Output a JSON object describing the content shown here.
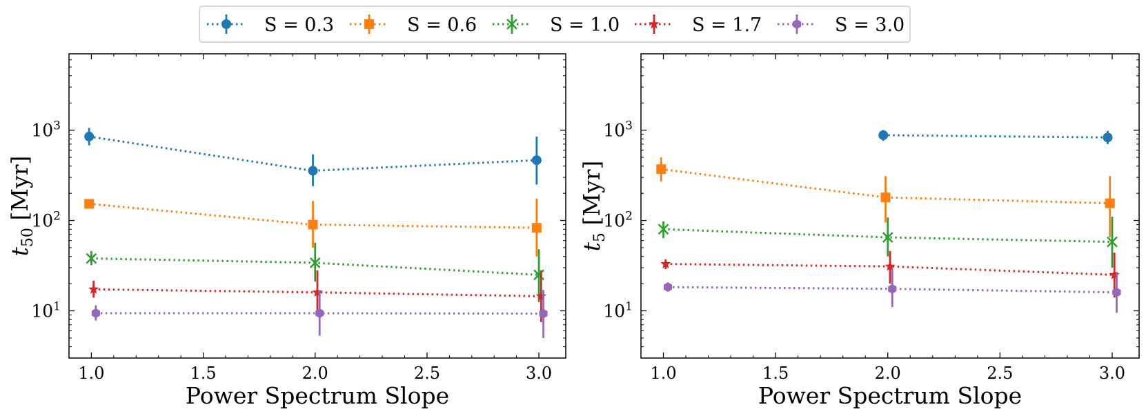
{
  "legend": {
    "placement": "top-center",
    "entries": [
      {
        "label": "S = 0.3",
        "color": "#1f77b4",
        "marker": "circle"
      },
      {
        "label": "S = 0.6",
        "color": "#ff7f0e",
        "marker": "square"
      },
      {
        "label": "S = 1.0",
        "color": "#2ca02c",
        "marker": "x"
      },
      {
        "label": "S = 1.7",
        "color": "#d62728",
        "marker": "star"
      },
      {
        "label": "S = 3.0",
        "color": "#9467bd",
        "marker": "hexagon"
      }
    ]
  },
  "chart_data": [
    {
      "type": "line",
      "ylabel_var": "t",
      "ylabel_sub": "50",
      "ylabel_unit": "[Myr]",
      "xlabel": "Power Spectrum Slope",
      "xlim": [
        0.9,
        3.12
      ],
      "ylim": [
        3,
        7000
      ],
      "yscale": "log",
      "grid": false,
      "xticks": [
        1.0,
        1.5,
        2.0,
        2.5,
        3.0
      ],
      "xtick_labels": [
        "1.0",
        "1.5",
        "2.0",
        "2.5",
        "3.0"
      ],
      "yticks": [
        10,
        100,
        1000
      ],
      "ytick_labels": [
        [
          "10",
          "1"
        ],
        [
          "10",
          "2"
        ],
        [
          "10",
          "3"
        ]
      ],
      "series": [
        {
          "name": "S = 0.3",
          "points": [
            {
              "x": 0.99,
              "y": 850,
              "lo": 680,
              "hi": 1060
            },
            {
              "x": 1.99,
              "y": 355,
              "lo": 240,
              "hi": 540
            },
            {
              "x": 2.99,
              "y": 465,
              "lo": 250,
              "hi": 850
            }
          ]
        },
        {
          "name": "S = 0.6",
          "points": [
            {
              "x": 0.99,
              "y": 153,
              "lo": 140,
              "hi": 168
            },
            {
              "x": 1.99,
              "y": 90,
              "lo": 50,
              "hi": 165
            },
            {
              "x": 2.99,
              "y": 83,
              "lo": 40,
              "hi": 175
            }
          ]
        },
        {
          "name": "S = 1.0",
          "points": [
            {
              "x": 1.0,
              "y": 38,
              "lo": 32,
              "hi": 46
            },
            {
              "x": 2.0,
              "y": 34,
              "lo": 21,
              "hi": 57
            },
            {
              "x": 3.0,
              "y": 25,
              "lo": 12.5,
              "hi": 48
            }
          ]
        },
        {
          "name": "S = 1.7",
          "points": [
            {
              "x": 1.01,
              "y": 17.3,
              "lo": 14,
              "hi": 21.5
            },
            {
              "x": 2.01,
              "y": 16,
              "lo": 9,
              "hi": 28
            },
            {
              "x": 3.01,
              "y": 14.5,
              "lo": 7.5,
              "hi": 28
            }
          ]
        },
        {
          "name": "S = 3.0",
          "points": [
            {
              "x": 1.02,
              "y": 9.4,
              "lo": 7.8,
              "hi": 11.5
            },
            {
              "x": 2.02,
              "y": 9.4,
              "lo": 5.3,
              "hi": 17
            },
            {
              "x": 3.02,
              "y": 9.3,
              "lo": 5,
              "hi": 17
            }
          ]
        }
      ]
    },
    {
      "type": "line",
      "ylabel_var": "t",
      "ylabel_sub": "5",
      "ylabel_unit": "[Myr]",
      "xlabel": "Power Spectrum Slope",
      "xlim": [
        0.9,
        3.12
      ],
      "ylim": [
        3,
        7000
      ],
      "yscale": "log",
      "grid": false,
      "xticks": [
        1.0,
        1.5,
        2.0,
        2.5,
        3.0
      ],
      "xtick_labels": [
        "1.0",
        "1.5",
        "2.0",
        "2.5",
        "3.0"
      ],
      "yticks": [
        10,
        100,
        1000
      ],
      "ytick_labels": [
        [
          "10",
          "1"
        ],
        [
          "10",
          "2"
        ],
        [
          "10",
          "3"
        ]
      ],
      "series": [
        {
          "name": "S = 0.3",
          "points": [
            {
              "x": 1.98,
              "y": 880,
              "lo": 760,
              "hi": 1000
            },
            {
              "x": 2.98,
              "y": 830,
              "lo": 700,
              "hi": 980
            }
          ]
        },
        {
          "name": "S = 0.6",
          "points": [
            {
              "x": 0.99,
              "y": 370,
              "lo": 270,
              "hi": 500
            },
            {
              "x": 1.99,
              "y": 180,
              "lo": 95,
              "hi": 310
            },
            {
              "x": 2.99,
              "y": 155,
              "lo": 65,
              "hi": 310
            }
          ]
        },
        {
          "name": "S = 1.0",
          "points": [
            {
              "x": 1.0,
              "y": 80,
              "lo": 64,
              "hi": 98
            },
            {
              "x": 2.0,
              "y": 65,
              "lo": 40,
              "hi": 108
            },
            {
              "x": 3.0,
              "y": 58,
              "lo": 30,
              "hi": 110
            }
          ]
        },
        {
          "name": "S = 1.7",
          "points": [
            {
              "x": 1.01,
              "y": 33,
              "lo": 29,
              "hi": 37
            },
            {
              "x": 2.01,
              "y": 31,
              "lo": 20,
              "hi": 46
            },
            {
              "x": 3.01,
              "y": 25,
              "lo": 14,
              "hi": 44
            }
          ]
        },
        {
          "name": "S = 3.0",
          "points": [
            {
              "x": 1.02,
              "y": 18.3,
              "lo": 16.5,
              "hi": 20.5
            },
            {
              "x": 2.02,
              "y": 17.5,
              "lo": 11,
              "hi": 28
            },
            {
              "x": 3.02,
              "y": 16,
              "lo": 9.5,
              "hi": 27
            }
          ]
        }
      ]
    }
  ]
}
